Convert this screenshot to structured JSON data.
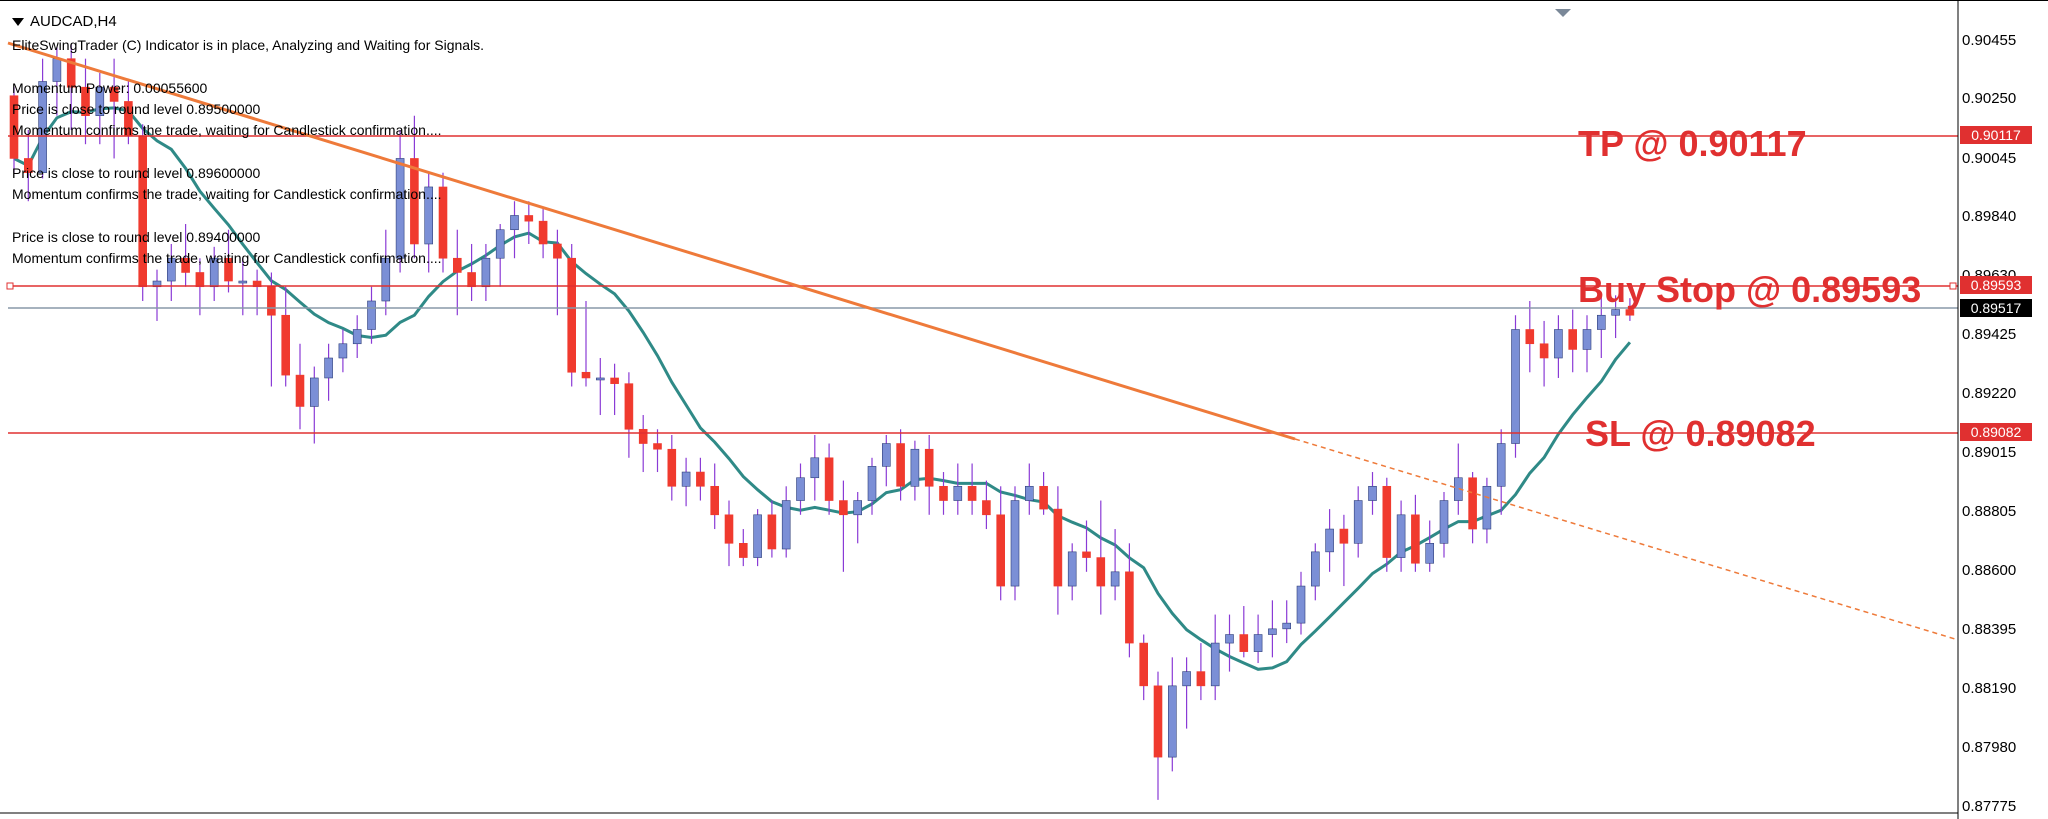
{
  "symbol": "AUDCAD,H4",
  "indicator": {
    "status": "EliteSwingTrader (C) Indicator is in place, Analyzing and Waiting for Signals.",
    "messages": [
      "Momentum Power: 0.00055600",
      "Price is close to round level 0.89500000",
      "Momentum confirms the trade, waiting for Candlestick confirmation....",
      "Price is close to round level 0.89600000",
      "Momentum confirms the trade, waiting for Candlestick confirmation....",
      "Price is close to round level 0.89400000",
      "Momentum confirms the trade, waiting for Candlestick confirmation...."
    ]
  },
  "levels": {
    "tp": {
      "label": "TP @ 0.90117",
      "tag": "0.90117",
      "price": 0.90117
    },
    "buy_stop": {
      "label": "Buy Stop @ 0.89593",
      "tag": "0.89593",
      "price": 0.89593
    },
    "sl": {
      "label": "SL @ 0.89082",
      "tag": "0.89082",
      "price": 0.89082
    },
    "bid": {
      "tag": "0.89517",
      "price": 0.89517
    }
  },
  "price_axis": [
    "0.90455",
    "0.90250",
    "0.90045",
    "0.89840",
    "0.89630",
    "0.89425",
    "0.89220",
    "0.89015",
    "0.88805",
    "0.88600",
    "0.88395",
    "0.88190",
    "0.87980",
    "0.87775"
  ],
  "colors": {
    "bear": "#f03a2e",
    "bull": "#7b8fd6",
    "wick": "#8a3bd6",
    "ma": "#2f8a87",
    "trend": "#ee7a3a",
    "level": "#e03030",
    "bid_line": "#8898a8"
  },
  "chart_data": {
    "type": "candlestick",
    "ylim": [
      0.87775,
      0.90455
    ],
    "candles": [
      [
        0.9027,
        0.903,
        0.9,
        0.9005
      ],
      [
        0.9005,
        0.9015,
        0.899,
        0.9
      ],
      [
        0.9,
        0.904,
        0.8998,
        0.9032
      ],
      [
        0.9032,
        0.9044,
        0.902,
        0.904
      ],
      [
        0.904,
        0.9045,
        0.9015,
        0.903
      ],
      [
        0.903,
        0.904,
        0.901,
        0.902
      ],
      [
        0.902,
        0.9035,
        0.901,
        0.903
      ],
      [
        0.903,
        0.904,
        0.9005,
        0.9025
      ],
      [
        0.9025,
        0.9032,
        0.901,
        0.9013
      ],
      [
        0.9013,
        0.9017,
        0.8955,
        0.896
      ],
      [
        0.896,
        0.8966,
        0.8948,
        0.8962
      ],
      [
        0.8962,
        0.8975,
        0.8955,
        0.897
      ],
      [
        0.897,
        0.8982,
        0.896,
        0.8965
      ],
      [
        0.8965,
        0.897,
        0.895,
        0.896
      ],
      [
        0.896,
        0.8974,
        0.8955,
        0.897
      ],
      [
        0.897,
        0.898,
        0.8958,
        0.8962
      ],
      [
        0.8962,
        0.897,
        0.895,
        0.8962
      ],
      [
        0.8962,
        0.8966,
        0.895,
        0.896
      ],
      [
        0.896,
        0.8965,
        0.8925,
        0.895
      ],
      [
        0.895,
        0.896,
        0.8925,
        0.8929
      ],
      [
        0.8929,
        0.894,
        0.891,
        0.8918
      ],
      [
        0.8918,
        0.8932,
        0.8905,
        0.8928
      ],
      [
        0.8928,
        0.894,
        0.892,
        0.8935
      ],
      [
        0.8935,
        0.8945,
        0.893,
        0.894
      ],
      [
        0.894,
        0.895,
        0.8935,
        0.8945
      ],
      [
        0.8945,
        0.896,
        0.894,
        0.8955
      ],
      [
        0.8955,
        0.898,
        0.895,
        0.897
      ],
      [
        0.897,
        0.9015,
        0.8965,
        0.9005
      ],
      [
        0.9005,
        0.902,
        0.897,
        0.8975
      ],
      [
        0.8975,
        0.9,
        0.8965,
        0.8995
      ],
      [
        0.8995,
        0.9,
        0.8965,
        0.897
      ],
      [
        0.897,
        0.898,
        0.895,
        0.8965
      ],
      [
        0.8965,
        0.8975,
        0.8955,
        0.896
      ],
      [
        0.896,
        0.8975,
        0.8955,
        0.897
      ],
      [
        0.897,
        0.8982,
        0.896,
        0.898
      ],
      [
        0.898,
        0.899,
        0.897,
        0.8985
      ],
      [
        0.8985,
        0.899,
        0.8975,
        0.8983
      ],
      [
        0.8983,
        0.8988,
        0.897,
        0.8975
      ],
      [
        0.8975,
        0.898,
        0.895,
        0.897
      ],
      [
        0.897,
        0.8975,
        0.8925,
        0.893
      ],
      [
        0.893,
        0.8955,
        0.8925,
        0.8928
      ],
      [
        0.8928,
        0.8935,
        0.8915,
        0.8928
      ],
      [
        0.8928,
        0.8933,
        0.8915,
        0.8926
      ],
      [
        0.8926,
        0.893,
        0.89,
        0.891
      ],
      [
        0.891,
        0.8915,
        0.8895,
        0.8905
      ],
      [
        0.8905,
        0.891,
        0.8895,
        0.8903
      ],
      [
        0.8903,
        0.8908,
        0.8885,
        0.889
      ],
      [
        0.889,
        0.89,
        0.8883,
        0.8895
      ],
      [
        0.8895,
        0.89,
        0.8885,
        0.889
      ],
      [
        0.889,
        0.8898,
        0.8875,
        0.888
      ],
      [
        0.888,
        0.8885,
        0.8862,
        0.887
      ],
      [
        0.887,
        0.8875,
        0.8862,
        0.8865
      ],
      [
        0.8865,
        0.8882,
        0.8862,
        0.888
      ],
      [
        0.888,
        0.8885,
        0.8865,
        0.8868
      ],
      [
        0.8868,
        0.889,
        0.8865,
        0.8885
      ],
      [
        0.8885,
        0.8898,
        0.888,
        0.8893
      ],
      [
        0.8893,
        0.8908,
        0.8885,
        0.89
      ],
      [
        0.89,
        0.8905,
        0.888,
        0.8885
      ],
      [
        0.8885,
        0.8892,
        0.886,
        0.888
      ],
      [
        0.888,
        0.8888,
        0.887,
        0.8885
      ],
      [
        0.8885,
        0.89,
        0.888,
        0.8897
      ],
      [
        0.8897,
        0.8908,
        0.889,
        0.8905
      ],
      [
        0.8905,
        0.891,
        0.8885,
        0.889
      ],
      [
        0.889,
        0.8906,
        0.8885,
        0.8903
      ],
      [
        0.8903,
        0.8908,
        0.888,
        0.889
      ],
      [
        0.889,
        0.8895,
        0.888,
        0.8885
      ],
      [
        0.8885,
        0.8898,
        0.888,
        0.889
      ],
      [
        0.889,
        0.8898,
        0.888,
        0.8885
      ],
      [
        0.8885,
        0.8892,
        0.8875,
        0.888
      ],
      [
        0.888,
        0.889,
        0.885,
        0.8855
      ],
      [
        0.8855,
        0.889,
        0.885,
        0.8885
      ],
      [
        0.8885,
        0.8898,
        0.888,
        0.889
      ],
      [
        0.889,
        0.8895,
        0.888,
        0.8882
      ],
      [
        0.8882,
        0.889,
        0.8845,
        0.8855
      ],
      [
        0.8855,
        0.887,
        0.885,
        0.8867
      ],
      [
        0.8867,
        0.8878,
        0.886,
        0.8865
      ],
      [
        0.8865,
        0.8885,
        0.8845,
        0.8855
      ],
      [
        0.8855,
        0.8875,
        0.885,
        0.886
      ],
      [
        0.886,
        0.887,
        0.883,
        0.8835
      ],
      [
        0.8835,
        0.8838,
        0.8815,
        0.882
      ],
      [
        0.882,
        0.8825,
        0.878,
        0.8795
      ],
      [
        0.8795,
        0.883,
        0.879,
        0.882
      ],
      [
        0.882,
        0.883,
        0.8805,
        0.8825
      ],
      [
        0.8825,
        0.8835,
        0.8815,
        0.882
      ],
      [
        0.882,
        0.8845,
        0.8815,
        0.8835
      ],
      [
        0.8835,
        0.8845,
        0.8825,
        0.8838
      ],
      [
        0.8838,
        0.8848,
        0.883,
        0.8832
      ],
      [
        0.8832,
        0.8845,
        0.8828,
        0.8838
      ],
      [
        0.8838,
        0.885,
        0.883,
        0.884
      ],
      [
        0.884,
        0.885,
        0.8835,
        0.8842
      ],
      [
        0.8842,
        0.886,
        0.8838,
        0.8855
      ],
      [
        0.8855,
        0.887,
        0.885,
        0.8867
      ],
      [
        0.8867,
        0.8882,
        0.886,
        0.8875
      ],
      [
        0.8875,
        0.888,
        0.8855,
        0.887
      ],
      [
        0.887,
        0.889,
        0.8865,
        0.8885
      ],
      [
        0.8885,
        0.8895,
        0.888,
        0.889
      ],
      [
        0.889,
        0.8893,
        0.886,
        0.8865
      ],
      [
        0.8865,
        0.8885,
        0.886,
        0.888
      ],
      [
        0.888,
        0.8887,
        0.886,
        0.8863
      ],
      [
        0.8863,
        0.8878,
        0.886,
        0.887
      ],
      [
        0.887,
        0.8888,
        0.8865,
        0.8885
      ],
      [
        0.8885,
        0.8905,
        0.888,
        0.8893
      ],
      [
        0.8893,
        0.8895,
        0.887,
        0.8875
      ],
      [
        0.8875,
        0.8893,
        0.887,
        0.889
      ],
      [
        0.889,
        0.891,
        0.888,
        0.8905
      ],
      [
        0.8905,
        0.895,
        0.89,
        0.8945
      ],
      [
        0.8945,
        0.8955,
        0.893,
        0.894
      ],
      [
        0.894,
        0.8948,
        0.8925,
        0.8935
      ],
      [
        0.8935,
        0.895,
        0.8928,
        0.8945
      ],
      [
        0.8945,
        0.8952,
        0.893,
        0.8938
      ],
      [
        0.8938,
        0.895,
        0.893,
        0.8945
      ],
      [
        0.8945,
        0.8958,
        0.8935,
        0.895
      ],
      [
        0.895,
        0.8957,
        0.8942,
        0.8952
      ],
      [
        0.8952,
        0.8956,
        0.8948,
        0.895
      ]
    ]
  }
}
